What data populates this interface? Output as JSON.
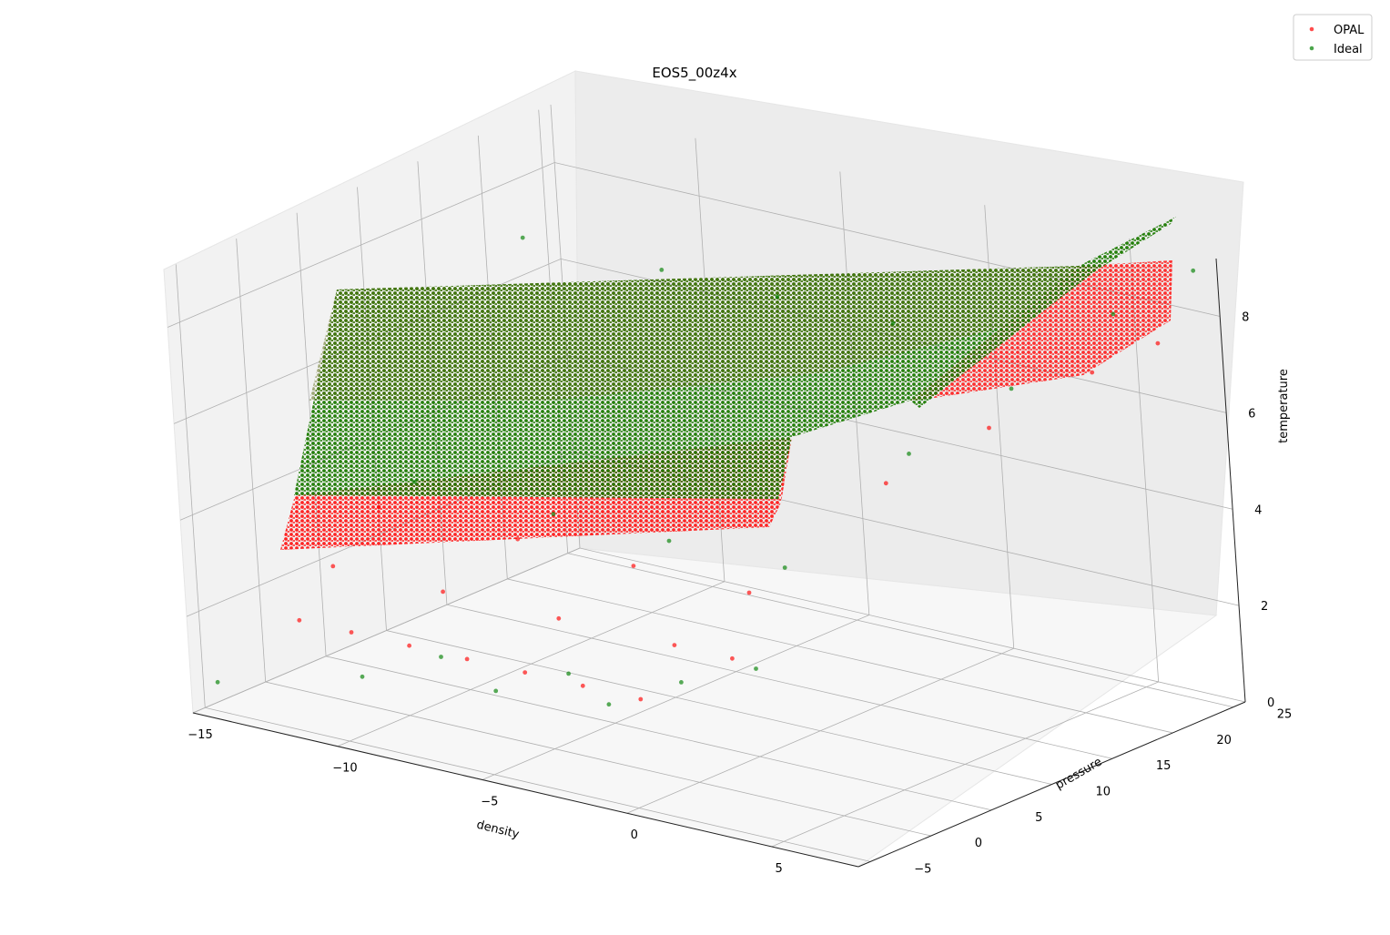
{
  "chart_data": {
    "type": "scatter",
    "projection": "3d",
    "title": "EOS5_00z4x",
    "xlabel": "density",
    "ylabel": "pressure",
    "zlabel": "temperature",
    "xlim": [
      -15,
      8
    ],
    "ylim": [
      -6,
      26
    ],
    "zlim": [
      0,
      9.2
    ],
    "xticks": [
      "−15",
      "−10",
      "−5",
      "0",
      "5"
    ],
    "yticks": [
      "−5",
      "0",
      "5",
      "10",
      "15",
      "20",
      "25"
    ],
    "zticks": [
      "0",
      "2",
      "4",
      "6",
      "8"
    ],
    "grid": true,
    "legend_position": "top-right",
    "series": [
      {
        "name": "OPAL",
        "color": "#ff0000",
        "marker": "dot",
        "points": [
          [
            -12.8,
            -2.0,
            1.8
          ],
          [
            -11.0,
            -2.0,
            1.8
          ],
          [
            -9.0,
            -2.0,
            1.8
          ],
          [
            -7.0,
            -2.0,
            1.8
          ],
          [
            -5.0,
            -2.0,
            1.8
          ],
          [
            -3.0,
            -2.0,
            1.8
          ],
          [
            -1.0,
            -2.0,
            1.8
          ],
          [
            -12.8,
            1.0,
            2.6
          ],
          [
            -9.0,
            1.0,
            2.6
          ],
          [
            -5.0,
            1.0,
            2.6
          ],
          [
            -1.0,
            1.0,
            2.6
          ],
          [
            1.0,
            1.0,
            2.6
          ],
          [
            -12.8,
            5.0,
            3.4
          ],
          [
            -8.0,
            5.0,
            3.4
          ],
          [
            -4.0,
            5.0,
            3.4
          ],
          [
            0.0,
            5.0,
            3.4
          ],
          [
            2.0,
            12.0,
            5.2
          ],
          [
            4.0,
            16.0,
            6.2
          ],
          [
            6.0,
            20.0,
            7.2
          ],
          [
            7.5,
            22.0,
            7.8
          ]
        ]
      },
      {
        "name": "Ideal",
        "color": "#008000",
        "marker": "dot",
        "points": [
          [
            -12.8,
            8.0,
            3.6
          ],
          [
            -8.0,
            8.0,
            3.6
          ],
          [
            -4.0,
            8.0,
            3.6
          ],
          [
            0.0,
            8.0,
            3.6
          ],
          [
            -12.8,
            18.0,
            7.6
          ],
          [
            -8.0,
            18.0,
            7.6
          ],
          [
            -4.0,
            18.0,
            7.6
          ],
          [
            0.0,
            18.0,
            7.6
          ],
          [
            2.0,
            14.0,
            5.6
          ],
          [
            4.0,
            18.0,
            6.8
          ],
          [
            6.0,
            22.0,
            8.2
          ],
          [
            7.6,
            25.0,
            9.0
          ],
          [
            -14.5,
            -5.0,
            0.6
          ],
          [
            -10.5,
            -2.5,
            1.0
          ],
          [
            -6.5,
            -1.0,
            1.1
          ],
          [
            -3.0,
            0.0,
            1.2
          ],
          [
            -9.0,
            0.5,
            1.3
          ],
          [
            -5.0,
            1.5,
            1.4
          ],
          [
            -1.5,
            2.5,
            1.6
          ],
          [
            0.5,
            4.0,
            2.0
          ]
        ]
      }
    ]
  }
}
